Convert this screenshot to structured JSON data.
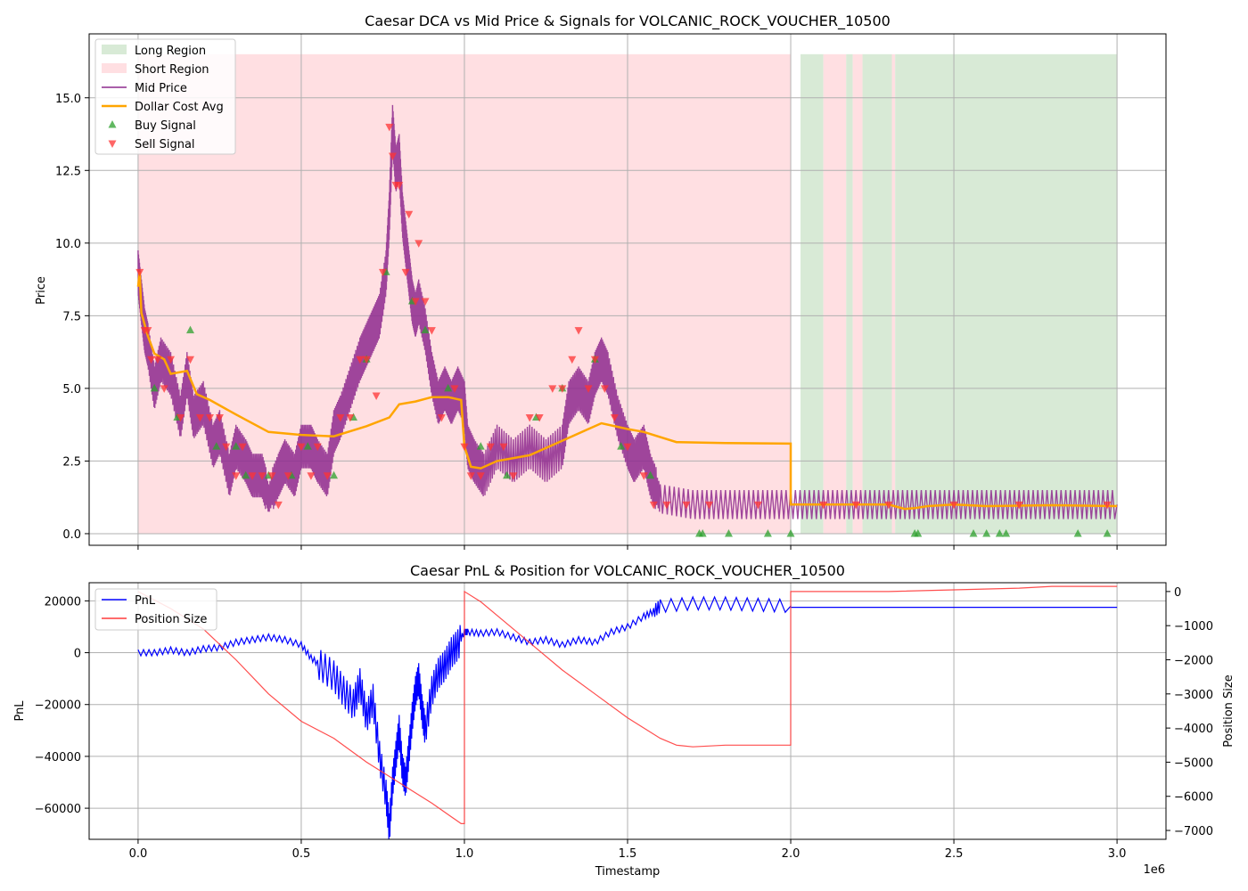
{
  "figure": {
    "x_exponent_label": "1e6"
  },
  "colors": {
    "long_region": "#d8ead6",
    "short_region": "#ffdfe2",
    "mid_price": "#8e2a8e",
    "dca": "#ffa500",
    "buy": "#2ca02c",
    "sell": "#ff3333",
    "pnl": "#0000ff",
    "position": "#ff3b3b",
    "grid": "#b0b0b0"
  },
  "chart_data": [
    {
      "type": "line",
      "title": "Caesar DCA vs Mid Price & Signals for VOLCANIC_ROCK_VOUCHER_10500",
      "xlabel": "",
      "ylabel": "Price",
      "xlim": [
        -0.15,
        3.15
      ],
      "ylim": [
        -0.4,
        17.2
      ],
      "x_ticks": [
        0,
        0.5,
        1.0,
        1.5,
        2.0,
        2.5,
        3.0
      ],
      "y_ticks": [
        0.0,
        2.5,
        5.0,
        7.5,
        10.0,
        12.5,
        15.0
      ],
      "y_tick_labels": [
        "0.0",
        "2.5",
        "5.0",
        "7.5",
        "10.0",
        "12.5",
        "15.0"
      ],
      "grid": true,
      "legend_placement": "upper-left",
      "legend": [
        "Long Region",
        "Short Region",
        "Mid Price",
        "Dollar Cost Avg",
        "Buy Signal",
        "Sell Signal"
      ],
      "regions": [
        {
          "type": "short",
          "x0": 0.0,
          "x1": 2.0
        },
        {
          "type": "long",
          "x0": 2.03,
          "x1": 2.1
        },
        {
          "type": "short",
          "x0": 2.1,
          "x1": 2.17
        },
        {
          "type": "long",
          "x0": 2.17,
          "x1": 2.19
        },
        {
          "type": "short",
          "x0": 2.19,
          "x1": 2.22
        },
        {
          "type": "long",
          "x0": 2.22,
          "x1": 2.31
        },
        {
          "type": "short",
          "x0": 2.31,
          "x1": 2.32
        },
        {
          "type": "long",
          "x0": 2.32,
          "x1": 3.0
        }
      ],
      "region_ymax": 16.5,
      "mid_price": {
        "x": [
          0,
          0.01,
          0.02,
          0.03,
          0.05,
          0.07,
          0.1,
          0.13,
          0.15,
          0.17,
          0.2,
          0.23,
          0.25,
          0.28,
          0.3,
          0.33,
          0.35,
          0.38,
          0.4,
          0.43,
          0.45,
          0.48,
          0.5,
          0.53,
          0.55,
          0.58,
          0.6,
          0.62,
          0.65,
          0.68,
          0.7,
          0.72,
          0.74,
          0.76,
          0.77,
          0.78,
          0.79,
          0.8,
          0.81,
          0.82,
          0.83,
          0.84,
          0.85,
          0.86,
          0.88,
          0.9,
          0.92,
          0.94,
          0.96,
          0.98,
          1.0,
          1.01,
          1.03,
          1.06,
          1.1,
          1.15,
          1.2,
          1.25,
          1.3,
          1.32,
          1.35,
          1.38,
          1.4,
          1.42,
          1.44,
          1.47,
          1.5,
          1.52,
          1.55,
          1.57,
          1.6,
          1.7,
          1.8,
          1.9,
          2.0,
          2.1,
          2.2,
          2.3,
          2.4,
          2.5,
          2.6,
          2.7,
          2.8,
          2.9,
          3.0
        ],
        "y": [
          9,
          8,
          7,
          6.5,
          5,
          6,
          5.5,
          4,
          5.5,
          4,
          4.5,
          3,
          3.5,
          2,
          3,
          2.5,
          2,
          2,
          1.2,
          2,
          2.5,
          2,
          3,
          3,
          2.5,
          2,
          3.5,
          4,
          5,
          6,
          6.5,
          7,
          7.5,
          9,
          11,
          14,
          12.5,
          13,
          11,
          10,
          9,
          8,
          7.5,
          8,
          7,
          5.5,
          4.5,
          5,
          4.5,
          5,
          4.5,
          3,
          2.5,
          2,
          3,
          2.5,
          3,
          2.5,
          3,
          4.5,
          5,
          4.5,
          5.5,
          6,
          5.5,
          4,
          3,
          2.5,
          3,
          2,
          1.2,
          1,
          1,
          1,
          1,
          1,
          1,
          1,
          1,
          1,
          1,
          1,
          1,
          1,
          1
        ]
      },
      "dollar_cost_avg": {
        "x": [
          0,
          0.005,
          0.01,
          0.03,
          0.05,
          0.08,
          0.1,
          0.15,
          0.18,
          0.22,
          0.3,
          0.4,
          0.5,
          0.6,
          0.7,
          0.77,
          0.8,
          0.85,
          0.9,
          0.95,
          0.99,
          1.0,
          1.02,
          1.05,
          1.1,
          1.2,
          1.3,
          1.38,
          1.42,
          1.5,
          1.55,
          1.65,
          1.8,
          2.0,
          2.0,
          2.3,
          2.35,
          2.38,
          2.42,
          2.5,
          2.6,
          2.8,
          3.0
        ],
        "y": [
          8.5,
          9,
          7.6,
          6.8,
          6.2,
          6.0,
          5.5,
          5.6,
          4.8,
          4.6,
          4.1,
          3.5,
          3.4,
          3.35,
          3.7,
          4.0,
          4.45,
          4.55,
          4.7,
          4.7,
          4.6,
          3.0,
          2.3,
          2.25,
          2.5,
          2.7,
          3.2,
          3.6,
          3.8,
          3.6,
          3.5,
          3.15,
          3.12,
          3.1,
          1.0,
          1.0,
          0.85,
          0.88,
          0.95,
          1.0,
          0.95,
          0.98,
          0.95
        ]
      },
      "buy_signals": {
        "x": [
          0.05,
          0.12,
          0.16,
          0.24,
          0.3,
          0.33,
          0.4,
          0.47,
          0.52,
          0.6,
          0.66,
          0.7,
          0.76,
          0.84,
          0.88,
          0.95,
          1.05,
          1.13,
          1.22,
          1.3,
          1.4,
          1.48,
          1.57,
          1.72,
          1.73,
          1.81,
          1.93,
          2.0,
          2.38,
          2.39,
          2.56,
          2.6,
          2.64,
          2.66,
          2.88,
          2.97
        ],
        "y": [
          5,
          4,
          7,
          3,
          3,
          2,
          2,
          2,
          3,
          2,
          4,
          6,
          9,
          8,
          7,
          5,
          3,
          2,
          4,
          5,
          6,
          3,
          2,
          0,
          0,
          0,
          0,
          0,
          0,
          0,
          0,
          0,
          0,
          0,
          0,
          0
        ]
      },
      "sell_signals": {
        "x": [
          0.005,
          0.02,
          0.03,
          0.04,
          0.06,
          0.08,
          0.1,
          0.13,
          0.16,
          0.19,
          0.22,
          0.25,
          0.27,
          0.3,
          0.32,
          0.35,
          0.38,
          0.41,
          0.43,
          0.46,
          0.5,
          0.53,
          0.55,
          0.58,
          0.62,
          0.65,
          0.68,
          0.7,
          0.73,
          0.75,
          0.77,
          0.78,
          0.79,
          0.8,
          0.82,
          0.83,
          0.85,
          0.86,
          0.88,
          0.9,
          0.93,
          0.97,
          1.0,
          1.02,
          1.05,
          1.08,
          1.12,
          1.15,
          1.2,
          1.23,
          1.27,
          1.3,
          1.33,
          1.35,
          1.38,
          1.4,
          1.43,
          1.46,
          1.5,
          1.55,
          1.58,
          1.62,
          1.68,
          1.75,
          1.9,
          2.1,
          2.2,
          2.3,
          2.5,
          2.7,
          2.97
        ],
        "y": [
          9,
          7,
          7,
          6,
          6,
          5,
          6,
          4,
          6,
          4,
          4,
          4,
          3,
          2,
          3,
          2,
          2,
          2,
          1,
          2,
          3,
          2,
          3,
          2,
          4,
          4,
          6,
          6,
          4.75,
          9,
          14,
          13,
          12,
          12,
          9,
          11,
          8,
          10,
          8,
          7,
          4,
          5,
          3,
          2,
          2,
          3,
          3,
          2,
          4,
          4,
          5,
          5,
          6,
          7,
          5,
          6,
          5,
          4,
          3,
          2,
          1,
          1,
          1,
          1,
          1,
          1,
          1,
          1,
          1,
          1,
          1
        ]
      }
    },
    {
      "type": "line",
      "title": "Caesar PnL & Position for VOLCANIC_ROCK_VOUCHER_10500",
      "xlabel": "Timestamp",
      "ylabel": "PnL",
      "y2label": "Position Size",
      "xlim": [
        -0.15,
        3.15
      ],
      "ylim": [
        -72000,
        27000
      ],
      "y2lim": [
        -7260,
        258
      ],
      "x_ticks": [
        0,
        0.5,
        1.0,
        1.5,
        2.0,
        2.5,
        3.0
      ],
      "x_tick_labels": [
        "0.0",
        "0.5",
        "1.0",
        "1.5",
        "2.0",
        "2.5",
        "3.0"
      ],
      "y_ticks": [
        20000,
        0,
        -20000,
        -40000,
        -60000
      ],
      "y_tick_labels": [
        "20000",
        "0",
        "−20000",
        "−40000",
        "−60000"
      ],
      "y2_ticks": [
        0,
        -1000,
        -2000,
        -3000,
        -4000,
        -5000,
        -6000,
        -7000
      ],
      "y2_tick_labels": [
        "0",
        "−1000",
        "−2000",
        "−3000",
        "−4000",
        "−5000",
        "−6000",
        "−7000"
      ],
      "grid": true,
      "legend_placement": "upper-left",
      "legend": [
        "PnL",
        "Position Size"
      ],
      "pnl": {
        "x": [
          0,
          0.05,
          0.1,
          0.15,
          0.2,
          0.25,
          0.3,
          0.35,
          0.4,
          0.45,
          0.5,
          0.53,
          0.56,
          0.6,
          0.63,
          0.66,
          0.68,
          0.7,
          0.72,
          0.74,
          0.76,
          0.77,
          0.78,
          0.79,
          0.8,
          0.81,
          0.82,
          0.83,
          0.84,
          0.85,
          0.86,
          0.87,
          0.88,
          0.9,
          0.92,
          0.94,
          0.96,
          0.98,
          1.0,
          1.01,
          1.05,
          1.1,
          1.15,
          1.2,
          1.25,
          1.3,
          1.35,
          1.4,
          1.45,
          1.5,
          1.55,
          1.58,
          1.6,
          1.7,
          1.8,
          1.9,
          2.0,
          2.0,
          2.5,
          3.0
        ],
        "y": [
          0,
          0,
          1000,
          0,
          1500,
          2000,
          4000,
          5000,
          6000,
          5000,
          3000,
          -2000,
          -5000,
          -9000,
          -15000,
          -20000,
          -12000,
          -25000,
          -18000,
          -40000,
          -55000,
          -68000,
          -50000,
          -40000,
          -30000,
          -45000,
          -50000,
          -38000,
          -25000,
          -15000,
          -10000,
          -22000,
          -30000,
          -15000,
          -8000,
          -5000,
          0,
          3000,
          8000,
          8000,
          7500,
          8000,
          6000,
          4000,
          5000,
          3000,
          5000,
          4000,
          8000,
          10000,
          14000,
          16000,
          18000,
          19000,
          19000,
          18500,
          18000,
          17500,
          17500,
          17500
        ]
      },
      "position_size": {
        "x": [
          0,
          0.1,
          0.2,
          0.3,
          0.4,
          0.5,
          0.6,
          0.7,
          0.8,
          0.9,
          0.99,
          1.0,
          1.0,
          1.05,
          1.1,
          1.2,
          1.3,
          1.4,
          1.5,
          1.6,
          1.65,
          1.7,
          1.8,
          1.9,
          2.0,
          2.0,
          2.3,
          2.5,
          2.7,
          2.8,
          3.0
        ],
        "y": [
          0,
          -500,
          -1100,
          -2000,
          -3000,
          -3800,
          -4300,
          -5000,
          -5600,
          -6200,
          -6800,
          -6800,
          0,
          -300,
          -700,
          -1500,
          -2300,
          -3000,
          -3700,
          -4300,
          -4500,
          -4550,
          -4500,
          -4500,
          -4500,
          0,
          0,
          50,
          100,
          150,
          150
        ]
      }
    }
  ]
}
